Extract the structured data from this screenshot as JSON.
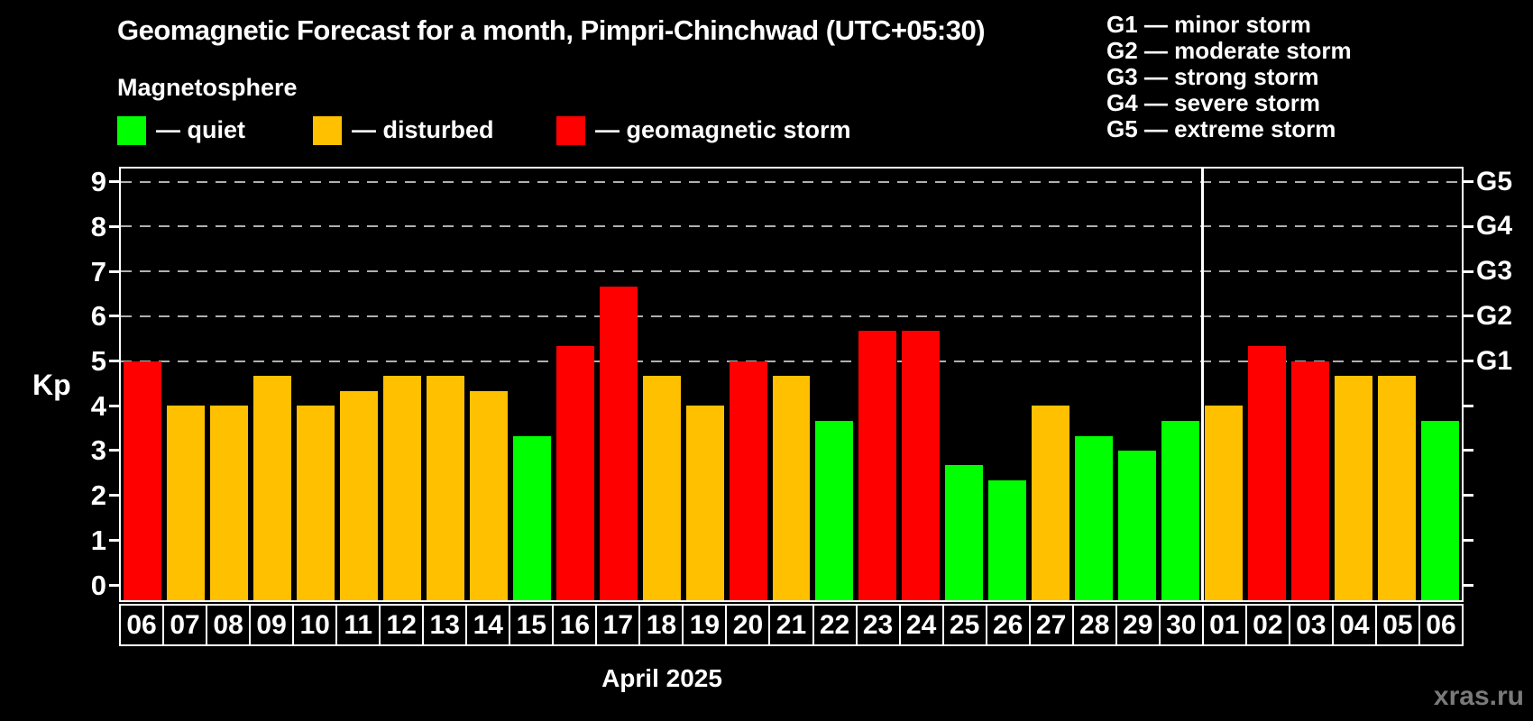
{
  "header": {
    "title": "Geomagnetic Forecast for a month, Pimpri-Chinchwad (UTC+05:30)",
    "subtitle": "Magnetosphere",
    "legend": [
      {
        "state": "quiet",
        "label": "— quiet",
        "color": "#00ff00"
      },
      {
        "state": "disturbed",
        "label": "— disturbed",
        "color": "#ffc000"
      },
      {
        "state": "storm",
        "label": "— geomagnetic storm",
        "color": "#ff0000"
      }
    ],
    "g_scale_legend": [
      "G1 — minor storm",
      "G2 — moderate storm",
      "G3 — strong storm",
      "G4 — severe storm",
      "G5 — extreme storm"
    ]
  },
  "chart_data": {
    "type": "bar",
    "title": "Geomagnetic Forecast for a month, Pimpri-Chinchwad (UTC+05:30)",
    "subtitle": "Magnetosphere",
    "ylabel": "Kp",
    "xlabel": "April 2025",
    "ylim": [
      0,
      9
    ],
    "yticks": [
      0,
      1,
      2,
      3,
      4,
      5,
      6,
      7,
      8,
      9
    ],
    "gridlines_at": [
      5,
      6,
      7,
      8,
      9
    ],
    "grid": "dashed horizontal at storm levels only",
    "right_axis": [
      {
        "kp": 5,
        "label": "G1"
      },
      {
        "kp": 6,
        "label": "G2"
      },
      {
        "kp": 7,
        "label": "G3"
      },
      {
        "kp": 8,
        "label": "G4"
      },
      {
        "kp": 9,
        "label": "G5"
      }
    ],
    "categories": [
      "06",
      "07",
      "08",
      "09",
      "10",
      "11",
      "12",
      "13",
      "14",
      "15",
      "16",
      "17",
      "18",
      "19",
      "20",
      "21",
      "22",
      "23",
      "24",
      "25",
      "26",
      "27",
      "28",
      "29",
      "30",
      "01",
      "02",
      "03",
      "04",
      "05",
      "06"
    ],
    "values": [
      5.0,
      4.0,
      4.0,
      4.67,
      4.0,
      4.33,
      4.67,
      4.67,
      4.33,
      3.33,
      5.33,
      6.67,
      4.67,
      4.0,
      5.0,
      4.67,
      3.67,
      5.67,
      5.67,
      2.67,
      2.33,
      4.0,
      3.33,
      3.0,
      3.67,
      4.0,
      5.33,
      5.0,
      4.67,
      4.67,
      3.67
    ],
    "states": [
      "storm",
      "disturbed",
      "disturbed",
      "disturbed",
      "disturbed",
      "disturbed",
      "disturbed",
      "disturbed",
      "disturbed",
      "quiet",
      "storm",
      "storm",
      "disturbed",
      "disturbed",
      "storm",
      "disturbed",
      "quiet",
      "storm",
      "storm",
      "quiet",
      "quiet",
      "disturbed",
      "quiet",
      "quiet",
      "quiet",
      "disturbed",
      "storm",
      "storm",
      "disturbed",
      "disturbed",
      "quiet"
    ],
    "month_separator_after_index": 24,
    "colors": {
      "quiet": "#00ff00",
      "disturbed": "#ffc000",
      "storm": "#ff0000"
    },
    "legend_position": "top-left"
  },
  "footer": {
    "month_label": "April 2025",
    "watermark": "xras.ru"
  }
}
